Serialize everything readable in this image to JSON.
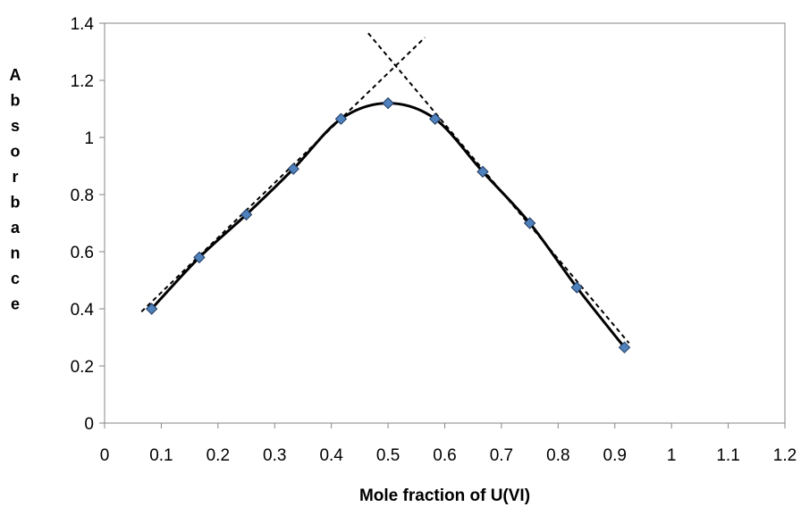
{
  "chart_data": {
    "type": "scatter",
    "title": "",
    "xlabel": "Mole fraction of U(VI)",
    "ylabel": "Absorbance",
    "xlim": [
      0,
      1.2
    ],
    "ylim": [
      0,
      1.4
    ],
    "x_ticks": [
      "0",
      "0.1",
      "0.2",
      "0.3",
      "0.4",
      "0.5",
      "0.6",
      "0.7",
      "0.8",
      "0.9",
      "1",
      "1.1",
      "1.2"
    ],
    "y_ticks": [
      "0",
      "0.2",
      "0.4",
      "0.6",
      "0.8",
      "1",
      "1.2",
      "1.4"
    ],
    "grid": false,
    "legend": "none",
    "series": [
      {
        "x": [
          0.083,
          0.167,
          0.25,
          0.333,
          0.417,
          0.5,
          0.583,
          0.667,
          0.75,
          0.833,
          0.917
        ],
        "y": [
          0.4,
          0.58,
          0.73,
          0.89,
          1.065,
          1.12,
          1.065,
          0.88,
          0.7,
          0.475,
          0.265
        ],
        "marker": "diamond",
        "marker_color": "#4f81bd",
        "line": "smooth",
        "line_color": "#000000"
      }
    ],
    "tangent_lines": [
      {
        "style": "dashed",
        "x": [
          0.065,
          0.565
        ],
        "y": [
          0.39,
          1.35
        ]
      },
      {
        "style": "dashed",
        "x": [
          0.465,
          0.925
        ],
        "y": [
          1.365,
          0.28
        ]
      }
    ]
  }
}
